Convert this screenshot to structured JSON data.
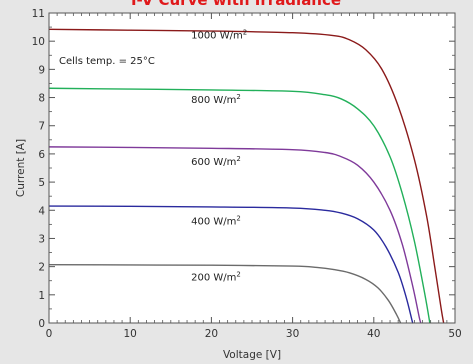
{
  "chart_data": {
    "type": "line",
    "title": "I-V Curve with Irradiance",
    "xlabel": "Voltage [V]",
    "ylabel": "Current [A]",
    "xlim": [
      0,
      50
    ],
    "ylim": [
      0,
      11
    ],
    "x_ticks": [
      0,
      10,
      20,
      30,
      40,
      50
    ],
    "y_ticks": [
      0,
      1,
      2,
      3,
      4,
      5,
      6,
      7,
      8,
      9,
      10,
      11
    ],
    "grid": false,
    "note": "Cells temp. = 25°C",
    "series": [
      {
        "name": "1000 W/m²",
        "label_text": "1000 W/m",
        "label_sup": "2",
        "label_x": 17.5,
        "label_y": 10.1,
        "color": "#8b1a1a",
        "points": [
          [
            0,
            10.42
          ],
          [
            10,
            10.39
          ],
          [
            20,
            10.36
          ],
          [
            30,
            10.3
          ],
          [
            35,
            10.2
          ],
          [
            37,
            10.05
          ],
          [
            39,
            9.7
          ],
          [
            41,
            9.0
          ],
          [
            43,
            7.7
          ],
          [
            45,
            5.8
          ],
          [
            46.5,
            3.8
          ],
          [
            47.5,
            2.0
          ],
          [
            48.3,
            0.5
          ],
          [
            48.6,
            0
          ]
        ]
      },
      {
        "name": "800 W/m²",
        "label_text": "800 W/m",
        "label_sup": "2",
        "label_x": 17.5,
        "label_y": 7.8,
        "color": "#22b05a",
        "points": [
          [
            0,
            8.33
          ],
          [
            10,
            8.3
          ],
          [
            20,
            8.27
          ],
          [
            30,
            8.22
          ],
          [
            34,
            8.1
          ],
          [
            36,
            7.95
          ],
          [
            38,
            7.6
          ],
          [
            40,
            7.0
          ],
          [
            42,
            5.9
          ],
          [
            43.5,
            4.6
          ],
          [
            45,
            2.9
          ],
          [
            46.3,
            1.0
          ],
          [
            46.9,
            0
          ]
        ]
      },
      {
        "name": "600 W/m²",
        "label_text": "600 W/m",
        "label_sup": "2",
        "label_x": 17.5,
        "label_y": 5.6,
        "color": "#7f3a9a",
        "points": [
          [
            0,
            6.25
          ],
          [
            10,
            6.23
          ],
          [
            20,
            6.2
          ],
          [
            30,
            6.15
          ],
          [
            34,
            6.05
          ],
          [
            36,
            5.9
          ],
          [
            38,
            5.6
          ],
          [
            40,
            5.0
          ],
          [
            42,
            4.0
          ],
          [
            43.5,
            2.8
          ],
          [
            44.8,
            1.3
          ],
          [
            45.6,
            0.2
          ],
          [
            45.8,
            0
          ]
        ]
      },
      {
        "name": "400 W/m²",
        "label_text": "400 W/m",
        "label_sup": "2",
        "label_x": 17.5,
        "label_y": 3.5,
        "color": "#2a2a9e",
        "points": [
          [
            0,
            4.15
          ],
          [
            10,
            4.14
          ],
          [
            20,
            4.12
          ],
          [
            30,
            4.08
          ],
          [
            34,
            4.0
          ],
          [
            36,
            3.9
          ],
          [
            38,
            3.7
          ],
          [
            40,
            3.3
          ],
          [
            41.5,
            2.7
          ],
          [
            43,
            1.8
          ],
          [
            44,
            0.9
          ],
          [
            44.7,
            0.1
          ],
          [
            44.8,
            0
          ]
        ]
      },
      {
        "name": "200 W/m²",
        "label_text": "200 W/m",
        "label_sup": "2",
        "label_x": 17.5,
        "label_y": 1.5,
        "color": "#6b6b6b",
        "points": [
          [
            0,
            2.07
          ],
          [
            10,
            2.06
          ],
          [
            20,
            2.05
          ],
          [
            30,
            2.02
          ],
          [
            33,
            1.97
          ],
          [
            35,
            1.9
          ],
          [
            37,
            1.78
          ],
          [
            39,
            1.55
          ],
          [
            40.5,
            1.25
          ],
          [
            41.8,
            0.8
          ],
          [
            42.8,
            0.3
          ],
          [
            43.3,
            0
          ]
        ]
      }
    ]
  }
}
